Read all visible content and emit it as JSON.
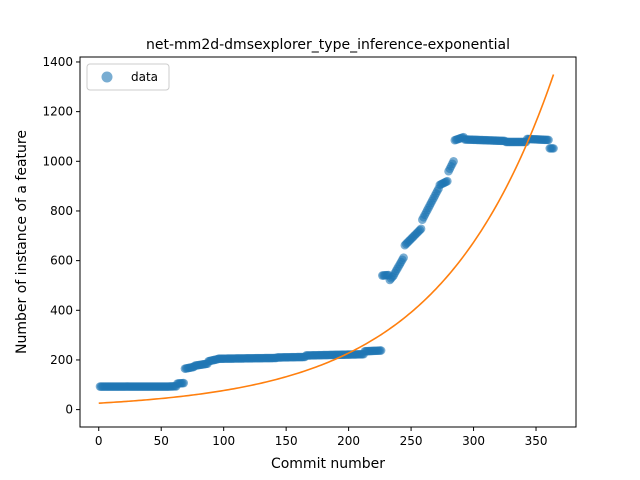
{
  "chart_data": {
    "type": "scatter",
    "title": "net-mm2d-dmsexplorer_type_inference-exponential",
    "xlabel": "Commit number",
    "ylabel": "Number of instance of a feature",
    "xlim": [
      -15,
      382
    ],
    "ylim": [
      -70,
      1420
    ],
    "xticks": [
      0,
      50,
      100,
      150,
      200,
      250,
      300,
      350
    ],
    "yticks": [
      0,
      200,
      400,
      600,
      800,
      1000,
      1200,
      1400
    ],
    "legend": {
      "placement": "top-left",
      "entries": [
        "data"
      ]
    },
    "colors": {
      "points": "#1f77b4",
      "fit": "#ff7f0e"
    },
    "series": [
      {
        "name": "data",
        "kind": "scatter",
        "segments": [
          {
            "x_start": 1,
            "x_end": 55,
            "y_start": 93,
            "y_end": 93
          },
          {
            "x_start": 56,
            "x_end": 62,
            "y_start": 93,
            "y_end": 94
          },
          {
            "x_start": 63,
            "x_end": 68,
            "y_start": 105,
            "y_end": 107
          },
          {
            "x_start": 69,
            "x_end": 76,
            "y_start": 165,
            "y_end": 172
          },
          {
            "x_start": 77,
            "x_end": 87,
            "y_start": 177,
            "y_end": 185
          },
          {
            "x_start": 88,
            "x_end": 95,
            "y_start": 195,
            "y_end": 203
          },
          {
            "x_start": 96,
            "x_end": 142,
            "y_start": 205,
            "y_end": 208
          },
          {
            "x_start": 143,
            "x_end": 165,
            "y_start": 210,
            "y_end": 212
          },
          {
            "x_start": 166,
            "x_end": 212,
            "y_start": 218,
            "y_end": 223
          },
          {
            "x_start": 213,
            "x_end": 226,
            "y_start": 235,
            "y_end": 238
          },
          {
            "x_start": 227,
            "x_end": 232,
            "y_start": 540,
            "y_end": 542
          },
          {
            "x_start": 233,
            "x_end": 236,
            "y_start": 522,
            "y_end": 540
          },
          {
            "x_start": 237,
            "x_end": 244,
            "y_start": 550,
            "y_end": 612
          },
          {
            "x_start": 245,
            "x_end": 258,
            "y_start": 662,
            "y_end": 728
          },
          {
            "x_start": 259,
            "x_end": 272,
            "y_start": 765,
            "y_end": 890
          },
          {
            "x_start": 273,
            "x_end": 279,
            "y_start": 905,
            "y_end": 920
          },
          {
            "x_start": 280,
            "x_end": 284,
            "y_start": 960,
            "y_end": 1000
          },
          {
            "x_start": 285,
            "x_end": 292,
            "y_start": 1085,
            "y_end": 1097
          },
          {
            "x_start": 293,
            "x_end": 325,
            "y_start": 1088,
            "y_end": 1082
          },
          {
            "x_start": 326,
            "x_end": 342,
            "y_start": 1078,
            "y_end": 1078
          },
          {
            "x_start": 343,
            "x_end": 360,
            "y_start": 1090,
            "y_end": 1086
          },
          {
            "x_start": 361,
            "x_end": 364,
            "y_start": 1052,
            "y_end": 1052
          }
        ]
      },
      {
        "name": "exponential fit",
        "kind": "line",
        "model": {
          "form": "a*exp(b*x)",
          "a": 26,
          "b": 0.01085,
          "x_start": 0,
          "x_end": 364
        }
      }
    ]
  }
}
